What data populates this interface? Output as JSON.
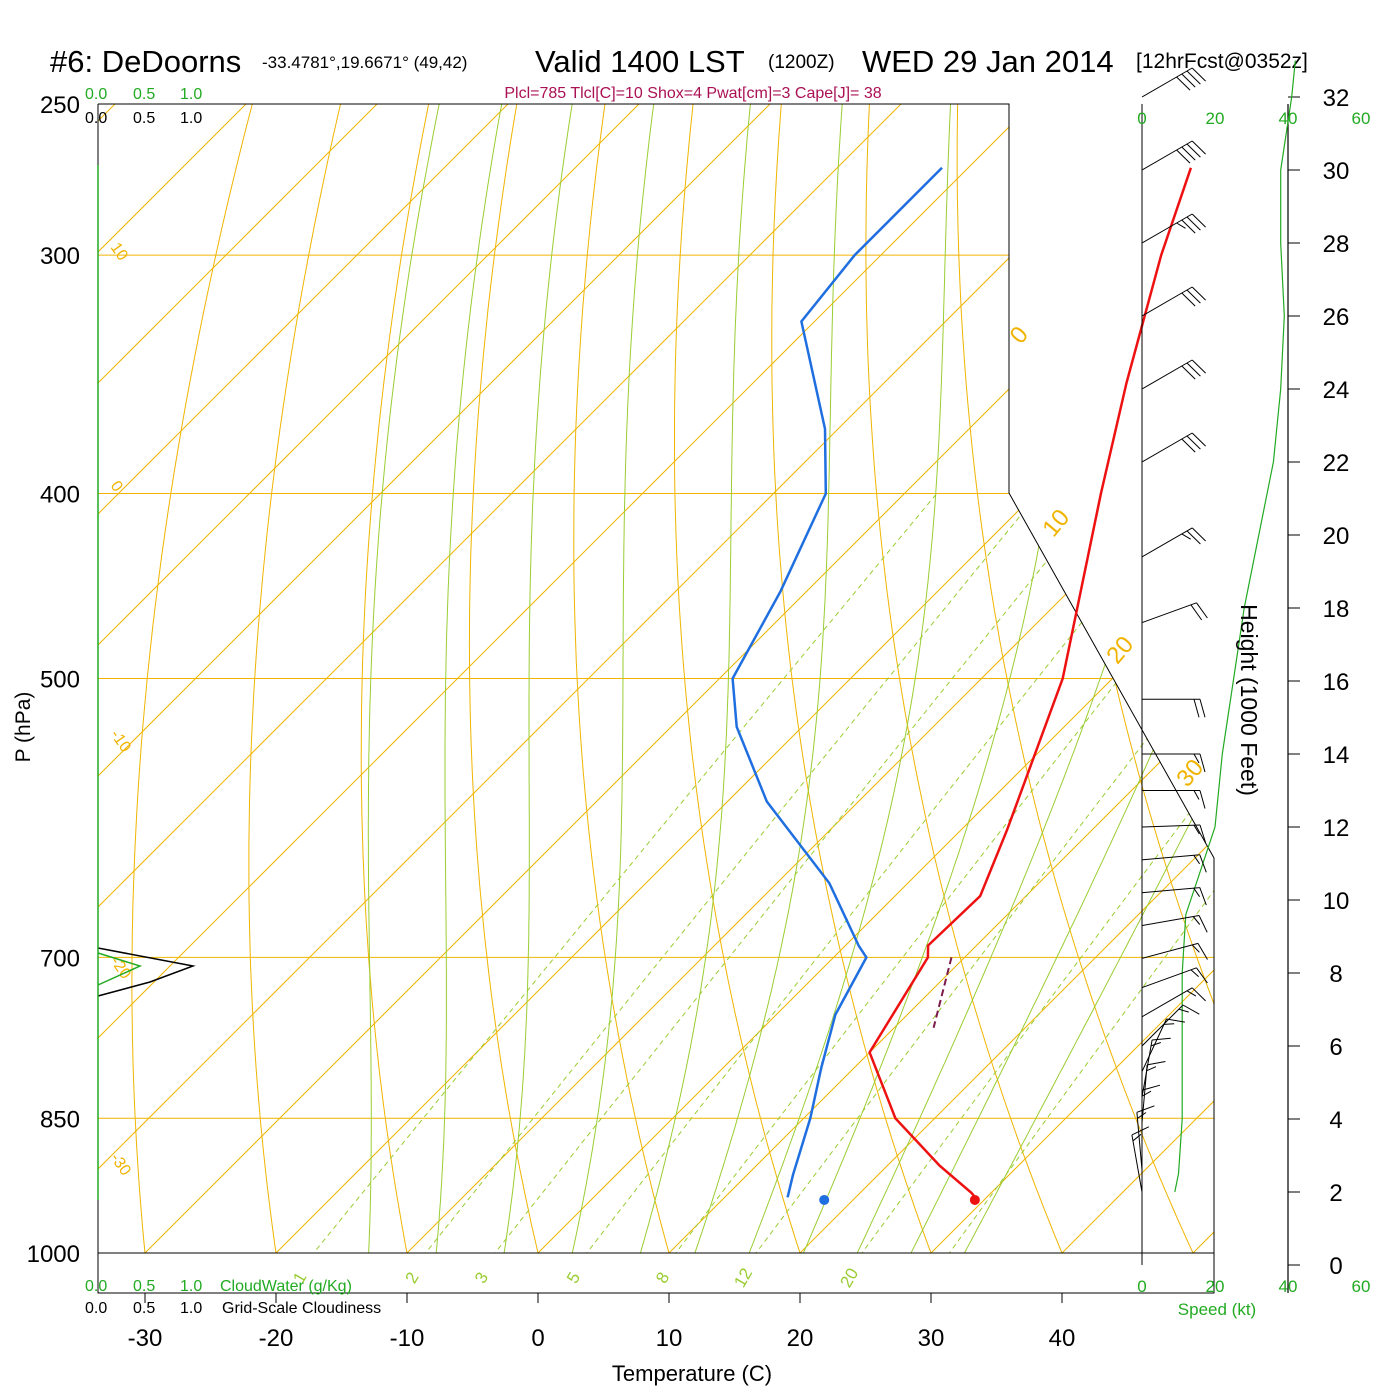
{
  "header": {
    "title_station": "#6: DeDoorns",
    "title_coords": "-33.4781°,19.6671° (49,42)",
    "title_valid": "Valid 1400 LST",
    "title_z": "(1200Z)",
    "title_date": "WED 29 Jan 2014",
    "title_fcst": "[12hrFcst@0352z]",
    "indices": "Plcl=785 Tlcl[C]=10 Shox=4 Pwat[cm]=3 Cape[J]= 38"
  },
  "colors": {
    "temperature": "#ee1111",
    "dewpoint": "#1f6fe0",
    "isotherm": "#f0b400",
    "dry_adiabat": "#f0b400",
    "moist_adiabat": "#9acd32",
    "mixing_ratio": "#9acd32",
    "parcel": "#7a1a4a",
    "cloud_green": "#22aa22",
    "indices_text": "#aa1155"
  },
  "chart_data": {
    "type": "skew-t",
    "xlabel": "Temperature (C)",
    "ylabel": "P (hPa)",
    "x_ticks": [
      "-30",
      "-20",
      "-10",
      "0",
      "10",
      "20",
      "30",
      "40"
    ],
    "p_ticks": [
      "250",
      "300",
      "400",
      "500",
      "700",
      "850",
      "1000"
    ],
    "xlim": [
      -34,
      36
    ],
    "plim": [
      250,
      1030
    ],
    "isotherm_labels": [
      "10",
      "0",
      "-10",
      "-20",
      "-30",
      "0",
      "10",
      "20",
      "30"
    ],
    "mixing_ratio_labels": [
      "1",
      "2",
      "3",
      "5",
      "8",
      "12",
      "20"
    ],
    "temperature_profile": [
      {
        "p": 270,
        "t": -33
      },
      {
        "p": 300,
        "t": -28.6
      },
      {
        "p": 350,
        "t": -21.5
      },
      {
        "p": 400,
        "t": -15
      },
      {
        "p": 500,
        "t": -3.8
      },
      {
        "p": 600,
        "t": 3.5
      },
      {
        "p": 650,
        "t": 6.5
      },
      {
        "p": 690,
        "t": 6.3
      },
      {
        "p": 700,
        "t": 7.2
      },
      {
        "p": 785,
        "t": 10
      },
      {
        "p": 850,
        "t": 17
      },
      {
        "p": 900,
        "t": 24
      },
      {
        "p": 930,
        "t": 28.5
      },
      {
        "p": 938,
        "t": 29.5
      }
    ],
    "dewpoint_profile": [
      {
        "p": 270,
        "t": -52
      },
      {
        "p": 300,
        "t": -52
      },
      {
        "p": 325,
        "t": -51
      },
      {
        "p": 370,
        "t": -41
      },
      {
        "p": 400,
        "t": -36
      },
      {
        "p": 450,
        "t": -32
      },
      {
        "p": 500,
        "t": -29
      },
      {
        "p": 530,
        "t": -25
      },
      {
        "p": 580,
        "t": -17
      },
      {
        "p": 640,
        "t": -6
      },
      {
        "p": 690,
        "t": 1
      },
      {
        "p": 700,
        "t": 2.5
      },
      {
        "p": 750,
        "t": 4.5
      },
      {
        "p": 800,
        "t": 7.5
      },
      {
        "p": 850,
        "t": 10.5
      },
      {
        "p": 910,
        "t": 13.5
      },
      {
        "p": 935,
        "t": 14.8
      }
    ],
    "surface_temperature": {
      "p": 938,
      "t": 29.3
    },
    "surface_dewpoint": {
      "p": 938,
      "t": 17.8
    },
    "parcel_segment": [
      {
        "p": 700,
        "t": 9
      },
      {
        "p": 762,
        "t": 13
      }
    ],
    "cloud_panel": {
      "cloudwater_label": "CloudWater (g/Kg)",
      "cloudiness_label": "Grid-Scale Cloudiness",
      "ticks": [
        "0.0",
        "0.5",
        "1.0"
      ]
    },
    "height_axis": {
      "label": "Height (1000 Feet)",
      "ticks": [
        "0",
        "2",
        "4",
        "6",
        "8",
        "10",
        "12",
        "14",
        "16",
        "18",
        "20",
        "22",
        "24",
        "26",
        "28",
        "30",
        "32"
      ]
    },
    "speed_axis": {
      "label": "Speed (kt)",
      "ticks": [
        "0",
        "20",
        "40",
        "60"
      ]
    },
    "wind_profile": [
      {
        "h": 2.0,
        "spd": 15,
        "dir": 170
      },
      {
        "h": 2.6,
        "spd": 15,
        "dir": 175
      },
      {
        "h": 3.2,
        "spd": 15,
        "dir": 180
      },
      {
        "h": 3.9,
        "spd": 15,
        "dir": 185
      },
      {
        "h": 4.6,
        "spd": 15,
        "dir": 190
      },
      {
        "h": 5.3,
        "spd": 15,
        "dir": 205
      },
      {
        "h": 6.0,
        "spd": 15,
        "dir": 225
      },
      {
        "h": 6.8,
        "spd": 15,
        "dir": 240
      },
      {
        "h": 7.6,
        "spd": 15,
        "dir": 250
      },
      {
        "h": 8.4,
        "spd": 15,
        "dir": 255
      },
      {
        "h": 9.3,
        "spd": 15,
        "dir": 260
      },
      {
        "h": 10.2,
        "spd": 15,
        "dir": 265
      },
      {
        "h": 11.1,
        "spd": 15,
        "dir": 265
      },
      {
        "h": 12.0,
        "spd": 15,
        "dir": 268
      },
      {
        "h": 13.0,
        "spd": 15,
        "dir": 270
      },
      {
        "h": 14.0,
        "spd": 15,
        "dir": 270
      },
      {
        "h": 15.5,
        "spd": 20,
        "dir": 270
      },
      {
        "h": 17.6,
        "spd": 20,
        "dir": 250
      },
      {
        "h": 19.4,
        "spd": 25,
        "dir": 240
      },
      {
        "h": 22.0,
        "spd": 30,
        "dir": 240
      },
      {
        "h": 24.0,
        "spd": 30,
        "dir": 240
      },
      {
        "h": 26.0,
        "spd": 30,
        "dir": 240
      },
      {
        "h": 28.0,
        "spd": 35,
        "dir": 240
      },
      {
        "h": 30.0,
        "spd": 40,
        "dir": 240
      },
      {
        "h": 32.0,
        "spd": 40,
        "dir": 240
      }
    ],
    "speed_profile": [
      {
        "h": 2.0,
        "spd": 9
      },
      {
        "h": 2.5,
        "spd": 10
      },
      {
        "h": 4.0,
        "spd": 11
      },
      {
        "h": 6.0,
        "spd": 11
      },
      {
        "h": 8.0,
        "spd": 11
      },
      {
        "h": 9.6,
        "spd": 12
      },
      {
        "h": 10.5,
        "spd": 15
      },
      {
        "h": 12.0,
        "spd": 20
      },
      {
        "h": 14.0,
        "spd": 22
      },
      {
        "h": 16.0,
        "spd": 25
      },
      {
        "h": 18.0,
        "spd": 28
      },
      {
        "h": 20.0,
        "spd": 32
      },
      {
        "h": 22.0,
        "spd": 36
      },
      {
        "h": 24.0,
        "spd": 38
      },
      {
        "h": 26.0,
        "spd": 39
      },
      {
        "h": 28.0,
        "spd": 38
      },
      {
        "h": 30.0,
        "spd": 38
      },
      {
        "h": 32.0,
        "spd": 41
      },
      {
        "h": 33.0,
        "spd": 42
      }
    ]
  }
}
